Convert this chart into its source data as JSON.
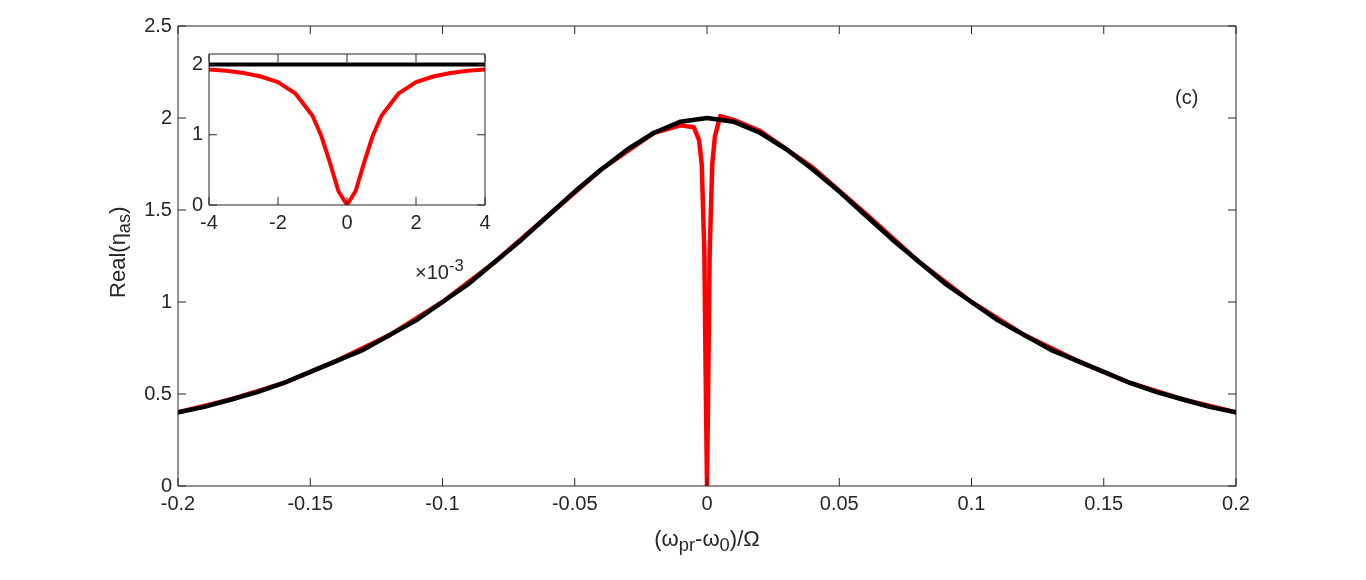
{
  "chart_data": [
    {
      "type": "line",
      "xlabel": "(ω$_{pr}$-ω$_{0}$)/Ω",
      "ylabel": "Real(η$_{as}$)",
      "annotations": [
        "(c)"
      ],
      "xlim": [
        -0.2,
        0.2
      ],
      "ylim": [
        0,
        2.5
      ],
      "xticks": [
        -0.2,
        -0.15,
        -0.1,
        -0.05,
        0,
        0.05,
        0.1,
        0.15,
        0.2
      ],
      "yticks": [
        0,
        0.5,
        1,
        1.5,
        2,
        2.5
      ],
      "marker": "none",
      "line_style": "solid",
      "series": [
        {
          "color": "#000000",
          "x": [
            -0.2,
            -0.19,
            -0.18,
            -0.17,
            -0.16,
            -0.15,
            -0.14,
            -0.13,
            -0.12,
            -0.11,
            -0.1,
            -0.09,
            -0.08,
            -0.07,
            -0.06,
            -0.05,
            -0.04,
            -0.03,
            -0.02,
            -0.01,
            0,
            0.01,
            0.02,
            0.03,
            0.04,
            0.05,
            0.06,
            0.07,
            0.08,
            0.09,
            0.1,
            0.11,
            0.12,
            0.13,
            0.14,
            0.15,
            0.16,
            0.17,
            0.18,
            0.19,
            0.2
          ],
          "values": [
            0.4,
            0.43,
            0.47,
            0.51,
            0.56,
            0.62,
            0.68,
            0.74,
            0.82,
            0.9,
            1,
            1.1,
            1.22,
            1.34,
            1.47,
            1.6,
            1.72,
            1.83,
            1.92,
            1.98,
            2,
            1.98,
            1.92,
            1.83,
            1.72,
            1.6,
            1.47,
            1.34,
            1.22,
            1.1,
            1,
            0.9,
            0.82,
            0.74,
            0.68,
            0.62,
            0.56,
            0.51,
            0.47,
            0.43,
            0.4
          ]
        },
        {
          "color": "#ff0000",
          "x": [
            -0.2,
            -0.18,
            -0.16,
            -0.14,
            -0.12,
            -0.1,
            -0.08,
            -0.06,
            -0.04,
            -0.02,
            -0.01,
            -0.005,
            -0.003,
            -0.002,
            -0.001,
            -0.0005,
            0,
            0.0005,
            0.001,
            0.002,
            0.003,
            0.005,
            0.01,
            0.02,
            0.04,
            0.06,
            0.08,
            0.1,
            0.12,
            0.14,
            0.16,
            0.18,
            0.2
          ],
          "values": [
            0.4,
            0.47,
            0.56,
            0.68,
            0.82,
            1,
            1.22,
            1.47,
            1.72,
            1.92,
            1.96,
            1.95,
            1.88,
            1.75,
            1.27,
            0.6,
            0,
            0.6,
            1.27,
            1.75,
            1.9,
            2.01,
            1.99,
            1.93,
            1.73,
            1.48,
            1.22,
            1,
            0.82,
            0.68,
            0.56,
            0.47,
            0.4
          ]
        }
      ]
    },
    {
      "type": "line",
      "annotations": [
        "×10$^{-3}$"
      ],
      "xlim": [
        -4,
        4
      ],
      "ylim": [
        0,
        2.15
      ],
      "xticks": [
        -4,
        -2,
        0,
        2,
        4
      ],
      "yticks": [
        0,
        1,
        2
      ],
      "marker": "none",
      "line_style": "solid",
      "series": [
        {
          "color": "#000000",
          "x": [
            -4,
            -2,
            0,
            2,
            4
          ],
          "values": [
            2,
            2,
            2,
            2,
            2
          ]
        },
        {
          "color": "#ff0000",
          "x": [
            -4,
            -3.5,
            -3,
            -2.5,
            -2,
            -1.5,
            -1,
            -0.75,
            -0.5,
            -0.25,
            0,
            0.25,
            0.5,
            0.75,
            1,
            1.5,
            2,
            2.5,
            3,
            3.5,
            4
          ],
          "values": [
            1.93,
            1.91,
            1.88,
            1.83,
            1.75,
            1.59,
            1.27,
            0.99,
            0.61,
            0.2,
            0,
            0.2,
            0.61,
            0.99,
            1.27,
            1.59,
            1.75,
            1.83,
            1.88,
            1.91,
            1.93
          ]
        }
      ]
    }
  ]
}
